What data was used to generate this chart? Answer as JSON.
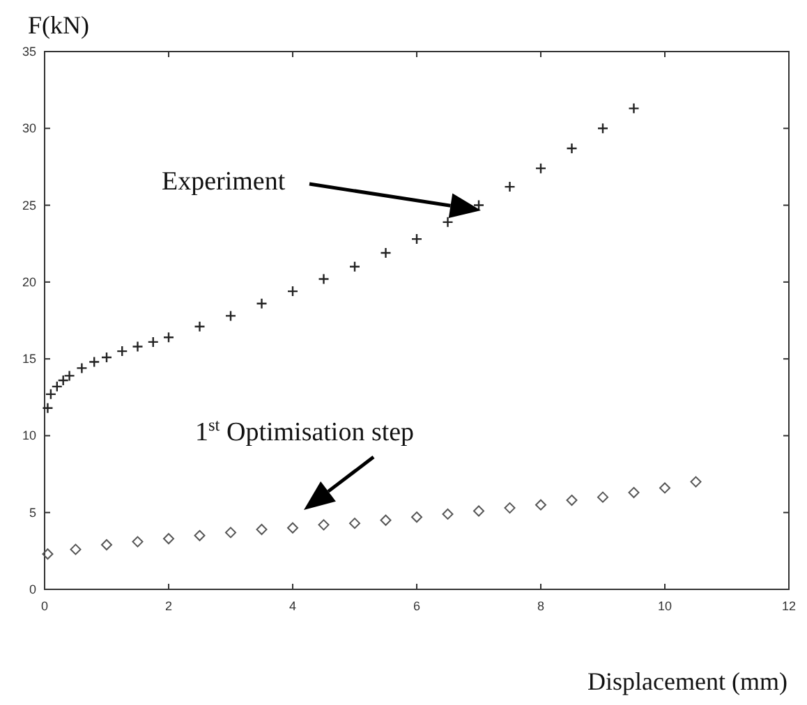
{
  "chart_data": {
    "type": "scatter",
    "xlabel": "Displacement (mm)",
    "ylabel": "F(kN)",
    "xlim": [
      0,
      12
    ],
    "ylim": [
      0,
      35
    ],
    "xticks": [
      0,
      2,
      4,
      6,
      8,
      10,
      12
    ],
    "yticks": [
      0,
      5,
      10,
      15,
      20,
      25,
      30,
      35
    ],
    "grid": false,
    "series": [
      {
        "color": "#222222",
        "marker": "cross",
        "x": [
          0.05,
          0.1,
          0.2,
          0.3,
          0.4,
          0.6,
          0.8,
          1,
          1.25,
          1.5,
          1.75,
          2,
          2.5,
          3,
          3.5,
          4,
          4.5,
          5,
          5.5,
          6,
          6.5,
          7,
          7.5,
          8,
          8.5,
          9,
          9.5
        ],
        "values": [
          11.8,
          12.7,
          13.2,
          13.6,
          13.9,
          14.4,
          14.8,
          15.1,
          15.5,
          15.8,
          16.1,
          16.4,
          17.1,
          17.8,
          18.6,
          19.4,
          20.2,
          21,
          21.9,
          22.8,
          23.9,
          25,
          26.2,
          27.4,
          28.7,
          30,
          31.3
        ]
      },
      {
        "color": "#555555",
        "marker": "diamond",
        "x": [
          0.05,
          0.5,
          1,
          1.5,
          2,
          2.5,
          3,
          3.5,
          4,
          4.5,
          5,
          5.5,
          6,
          6.5,
          7,
          7.5,
          8,
          8.5,
          9,
          9.5,
          10,
          10.5
        ],
        "values": [
          2.3,
          2.6,
          2.9,
          3.1,
          3.3,
          3.5,
          3.7,
          3.9,
          4,
          4.2,
          4.3,
          4.5,
          4.7,
          4.9,
          5.1,
          5.3,
          5.5,
          5.8,
          6,
          6.3,
          6.6,
          7
        ]
      }
    ],
    "annotations": [
      "Experiment",
      "1$^{st}$ Optimisation step"
    ]
  }
}
